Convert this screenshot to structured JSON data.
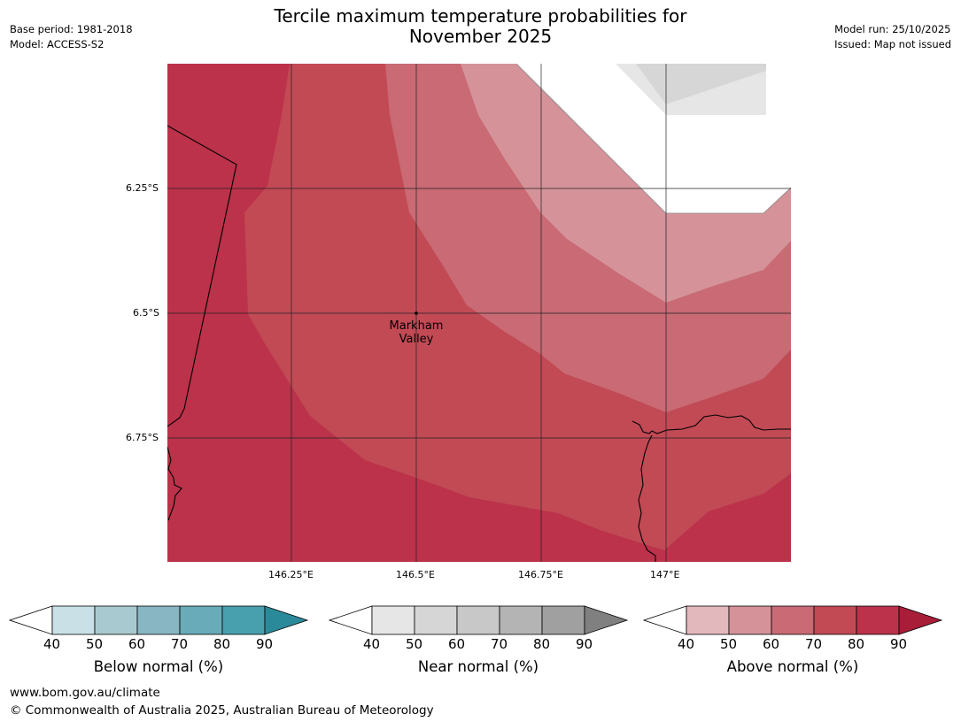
{
  "header": {
    "title_line1": "Tercile maximum temperature probabilities for",
    "title_line2": "November 2025",
    "base_period": "Base period: 1981-2018",
    "model": "Model: ACCESS-S2",
    "model_run": "Model run: 25/10/2025",
    "issued": "Issued: Map not issued"
  },
  "map": {
    "place_label_line1": "Markham",
    "place_label_line2": "Valley",
    "lat_labels": [
      "6.25°S",
      "6.5°S",
      "6.75°S"
    ],
    "lon_labels": [
      "146.25°E",
      "146.5°E",
      "146.75°E",
      "147°E"
    ],
    "colors": {
      "above_90": "#bb324a",
      "above_80": "#c14a55",
      "above_70": "#c96a74",
      "above_60": "#d59299",
      "near_50": "#d6d6d6",
      "near_40": "#e6e6e6"
    }
  },
  "legends": [
    {
      "label": "Below normal (%)",
      "ticks": [
        "40",
        "50",
        "60",
        "70",
        "80",
        "90"
      ],
      "colors": [
        "#ffffff",
        "#c9e1e6",
        "#a8c9cf",
        "#88b6c2",
        "#69abb8",
        "#48a0af",
        "#2b8a9a"
      ]
    },
    {
      "label": "Near normal (%)",
      "ticks": [
        "40",
        "50",
        "60",
        "70",
        "80",
        "90"
      ],
      "colors": [
        "#ffffff",
        "#e6e6e6",
        "#d6d6d6",
        "#c8c8c8",
        "#b4b4b4",
        "#a0a0a0",
        "#808080"
      ]
    },
    {
      "label": "Above normal (%)",
      "ticks": [
        "40",
        "50",
        "60",
        "70",
        "80",
        "90"
      ],
      "colors": [
        "#ffffff",
        "#e3b8bd",
        "#d59299",
        "#c96a74",
        "#c14a55",
        "#bb324a",
        "#a81d38"
      ]
    }
  ],
  "footer": {
    "url": "www.bom.gov.au/climate",
    "copyright": "© Commonwealth of Australia 2025, Australian Bureau of Meteorology"
  }
}
